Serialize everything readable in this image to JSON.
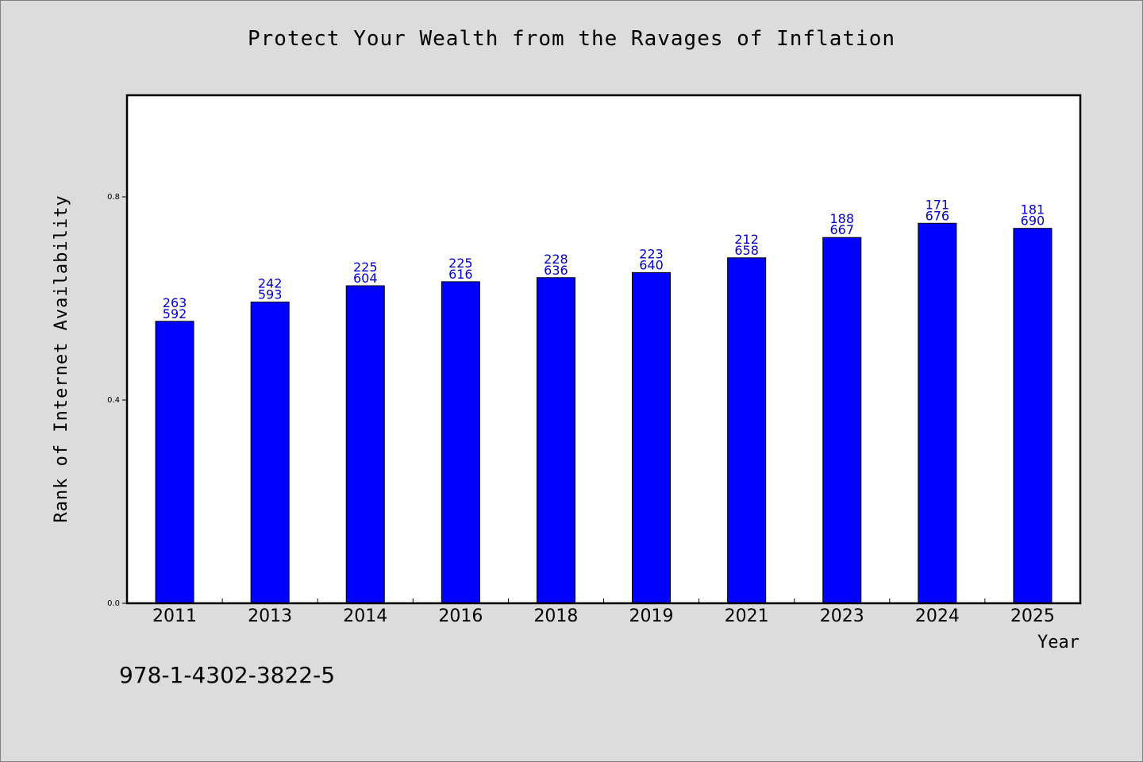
{
  "title": "Protect Your Wealth from the Ravages of Inflation",
  "footer_code": "978-1-4302-3822-5",
  "chart_data": {
    "type": "bar",
    "title": "Protect Your Wealth from the Ravages of Inflation",
    "xlabel": "Year",
    "ylabel": "Rank of Internet Availability",
    "ylim": [
      0,
      1.0
    ],
    "yticks": [
      0.0,
      0.4,
      0.8
    ],
    "ytick_labels": [
      "0.0",
      "0.4",
      "0.8"
    ],
    "grid": false,
    "bar_color": "#0000ff",
    "label_color": "#0000cc",
    "categories": [
      "2011",
      "2013",
      "2014",
      "2016",
      "2018",
      "2019",
      "2021",
      "2023",
      "2024",
      "2025"
    ],
    "values": [
      0.555,
      0.593,
      0.625,
      0.633,
      0.641,
      0.651,
      0.68,
      0.72,
      0.748,
      0.738
    ],
    "label_top": [
      "263",
      "242",
      "225",
      "225",
      "228",
      "223",
      "212",
      "188",
      "171",
      "181"
    ],
    "label_bottom": [
      "592",
      "593",
      "604",
      "616",
      "636",
      "640",
      "658",
      "667",
      "676",
      "690"
    ]
  }
}
